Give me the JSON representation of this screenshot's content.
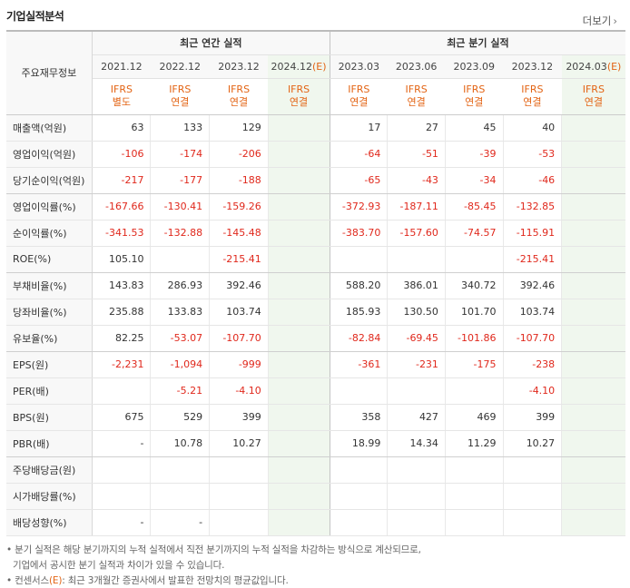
{
  "title": "기업실적분석",
  "more_label": "더보기",
  "header": {
    "item_label": "주요재무정보",
    "annual_label": "최근 연간 실적",
    "quarter_label": "최근 분기 실적",
    "annual_dates": [
      "2021.12",
      "2022.12",
      "2023.12",
      "2024.12"
    ],
    "annual_estimate_marker": "(E)",
    "quarter_dates": [
      "2023.03",
      "2023.06",
      "2023.09",
      "2023.12",
      "2024.03"
    ],
    "quarter_estimate_marker": "(E)",
    "ifrs_line1": [
      "IFRS",
      "IFRS",
      "IFRS",
      "IFRS",
      "IFRS",
      "IFRS",
      "IFRS",
      "IFRS",
      "IFRS"
    ],
    "ifrs_line2": [
      "별도",
      "연결",
      "연결",
      "연결",
      "연결",
      "연결",
      "연결",
      "연결",
      "연결"
    ]
  },
  "rows": [
    {
      "label": "매출액(억원)",
      "annual": [
        "63",
        "133",
        "129",
        ""
      ],
      "quarter": [
        "17",
        "27",
        "45",
        "40",
        ""
      ]
    },
    {
      "label": "영업이익(억원)",
      "annual": [
        "-106",
        "-174",
        "-206",
        ""
      ],
      "quarter": [
        "-64",
        "-51",
        "-39",
        "-53",
        ""
      ]
    },
    {
      "label": "당기순이익(억원)",
      "annual": [
        "-217",
        "-177",
        "-188",
        ""
      ],
      "quarter": [
        "-65",
        "-43",
        "-34",
        "-46",
        ""
      ]
    },
    {
      "label": "영업이익률(%)",
      "annual": [
        "-167.66",
        "-130.41",
        "-159.26",
        ""
      ],
      "quarter": [
        "-372.93",
        "-187.11",
        "-85.45",
        "-132.85",
        ""
      ]
    },
    {
      "label": "순이익률(%)",
      "annual": [
        "-341.53",
        "-132.88",
        "-145.48",
        ""
      ],
      "quarter": [
        "-383.70",
        "-157.60",
        "-74.57",
        "-115.91",
        ""
      ]
    },
    {
      "label": "ROE(%)",
      "annual": [
        "105.10",
        "",
        "-215.41",
        ""
      ],
      "quarter": [
        "",
        "",
        "",
        "-215.41",
        ""
      ]
    },
    {
      "label": "부채비율(%)",
      "annual": [
        "143.83",
        "286.93",
        "392.46",
        ""
      ],
      "quarter": [
        "588.20",
        "386.01",
        "340.72",
        "392.46",
        ""
      ]
    },
    {
      "label": "당좌비율(%)",
      "annual": [
        "235.88",
        "133.83",
        "103.74",
        ""
      ],
      "quarter": [
        "185.93",
        "130.50",
        "101.70",
        "103.74",
        ""
      ]
    },
    {
      "label": "유보율(%)",
      "annual": [
        "82.25",
        "-53.07",
        "-107.70",
        ""
      ],
      "quarter": [
        "-82.84",
        "-69.45",
        "-101.86",
        "-107.70",
        ""
      ]
    },
    {
      "label": "EPS(원)",
      "annual": [
        "-2,231",
        "-1,094",
        "-999",
        ""
      ],
      "quarter": [
        "-361",
        "-231",
        "-175",
        "-238",
        ""
      ]
    },
    {
      "label": "PER(배)",
      "annual": [
        "",
        "-5.21",
        "-4.10",
        ""
      ],
      "quarter": [
        "",
        "",
        "",
        "-4.10",
        ""
      ]
    },
    {
      "label": "BPS(원)",
      "annual": [
        "675",
        "529",
        "399",
        ""
      ],
      "quarter": [
        "358",
        "427",
        "469",
        "399",
        ""
      ]
    },
    {
      "label": "PBR(배)",
      "annual": [
        "-",
        "10.78",
        "10.27",
        ""
      ],
      "quarter": [
        "18.99",
        "14.34",
        "11.29",
        "10.27",
        ""
      ]
    },
    {
      "label": "주당배당금(원)",
      "annual": [
        "",
        "",
        "",
        ""
      ],
      "quarter": [
        "",
        "",
        "",
        "",
        ""
      ]
    },
    {
      "label": "시가배당률(%)",
      "annual": [
        "",
        "",
        "",
        ""
      ],
      "quarter": [
        "",
        "",
        "",
        "",
        ""
      ]
    },
    {
      "label": "배당성향(%)",
      "annual": [
        "-",
        "-",
        "",
        ""
      ],
      "quarter": [
        "",
        "",
        "",
        "",
        ""
      ]
    }
  ],
  "notes": {
    "line1": "분기 실적은 해당 분기까지의 누적 실적에서 직전 분기까지의 누적 실적을 차감하는 방식으로 계산되므로,",
    "line2": "기업에서 공시한 분기 실적과 차이가 있을 수 있습니다.",
    "line3_prefix": "컨센서스",
    "line3_marker": "(E)",
    "line3_suffix": ": 최근 3개월간 증권사에서 발표한 전망치의 평균값입니다."
  }
}
